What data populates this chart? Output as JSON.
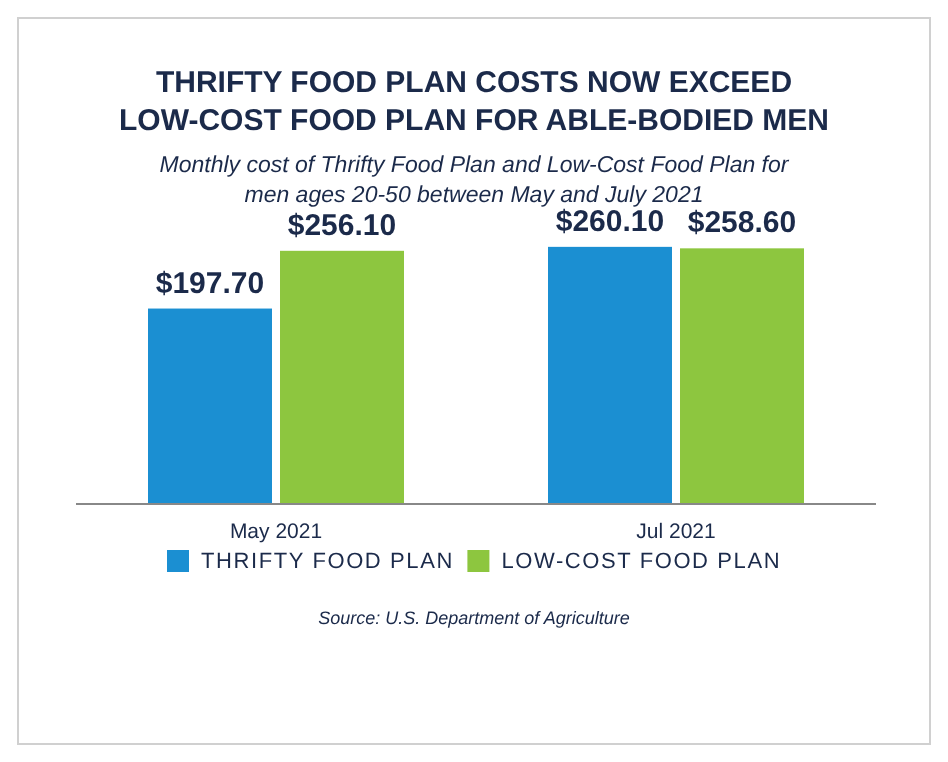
{
  "chart_data": {
    "type": "bar",
    "title": "THRIFTY FOOD PLAN COSTS NOW EXCEED LOW-COST FOOD PLAN FOR ABLE-BODIED MEN",
    "subtitle": "Monthly cost of Thrifty Food Plan and Low-Cost Food Plan for men ages 20-50 between May and July 2021",
    "categories": [
      "May 2021",
      "Jul 2021"
    ],
    "series": [
      {
        "name": "THRIFTY FOOD PLAN",
        "color": "#1b8fd2",
        "values": [
          197.7,
          260.1
        ],
        "value_labels": [
          "$197.70",
          "$260.10"
        ]
      },
      {
        "name": "LOW-COST FOOD PLAN",
        "color": "#8dc63f",
        "values": [
          256.1,
          258.6
        ],
        "value_labels": [
          "$256.10",
          "$258.60"
        ]
      }
    ],
    "tick_labels": "x",
    "grid": false,
    "legend": "bottom",
    "annotations": [
      "Source: U.S. Department of Agriculture"
    ]
  }
}
